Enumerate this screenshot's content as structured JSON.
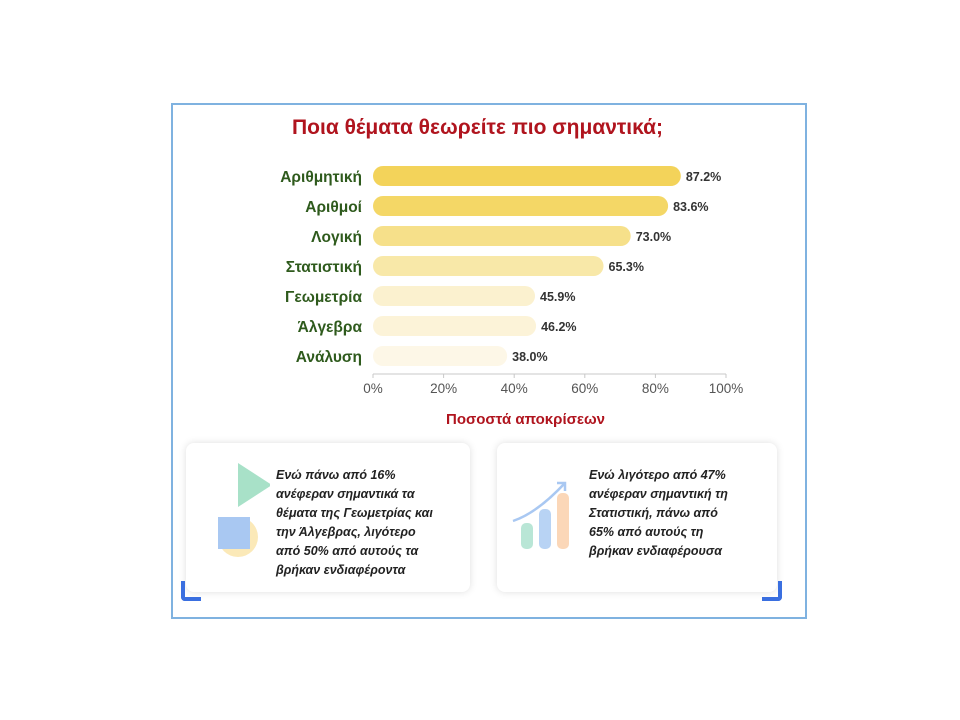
{
  "title": "Ποια  θέματα θεωρείτε πιο σημαντικά;",
  "chart_data": {
    "type": "bar",
    "orientation": "horizontal",
    "categories": [
      "Αριθμητική",
      "Αριθμοί",
      "Λογική",
      "Στατιστική",
      "Γεωμετρία",
      "Άλγεβρα",
      "Ανάλυση"
    ],
    "values": [
      87.2,
      83.6,
      73.0,
      65.3,
      45.9,
      46.2,
      38.0
    ],
    "value_labels": [
      "87.2%",
      "83.6%",
      "73.0%",
      "65.3%",
      "45.9%",
      "46.2%",
      "38.0%"
    ],
    "bar_colors": [
      "#f3d35a",
      "#f4d766",
      "#f6e08a",
      "#f8e8a8",
      "#fbf1cf",
      "#fcf3d8",
      "#fdf7e7"
    ],
    "xlim": [
      0,
      100
    ],
    "xticks": [
      "0%",
      "20%",
      "40%",
      "60%",
      "80%",
      "100%"
    ],
    "xlabel": "Ποσοστά αποκρίσεων",
    "ylabel": "",
    "grid": false
  },
  "cards": [
    {
      "text": "Ενώ πάνω από 16%\nανέφεραν σημαντικά τα\nθέματα της  Γεωμετρίας και\nτην Άλγεβρας, λιγότερο\nαπό 50% από αυτούς τα\nβρήκαν ενδιαφέροντα",
      "icon": "shapes-icon"
    },
    {
      "text": "Ενώ λιγότερο από 47%\nανέφεραν σημαντική τη\nΣτατιστική, πάνω από\n65% από αυτούς  τη\nβρήκαν ενδιαφέρουσα",
      "icon": "growth-chart-icon"
    }
  ],
  "colors": {
    "title": "#b0141e",
    "category_label": "#2e5a1c",
    "frame_border": "#7fb2e0",
    "accent_corner": "#3a6fe0"
  }
}
